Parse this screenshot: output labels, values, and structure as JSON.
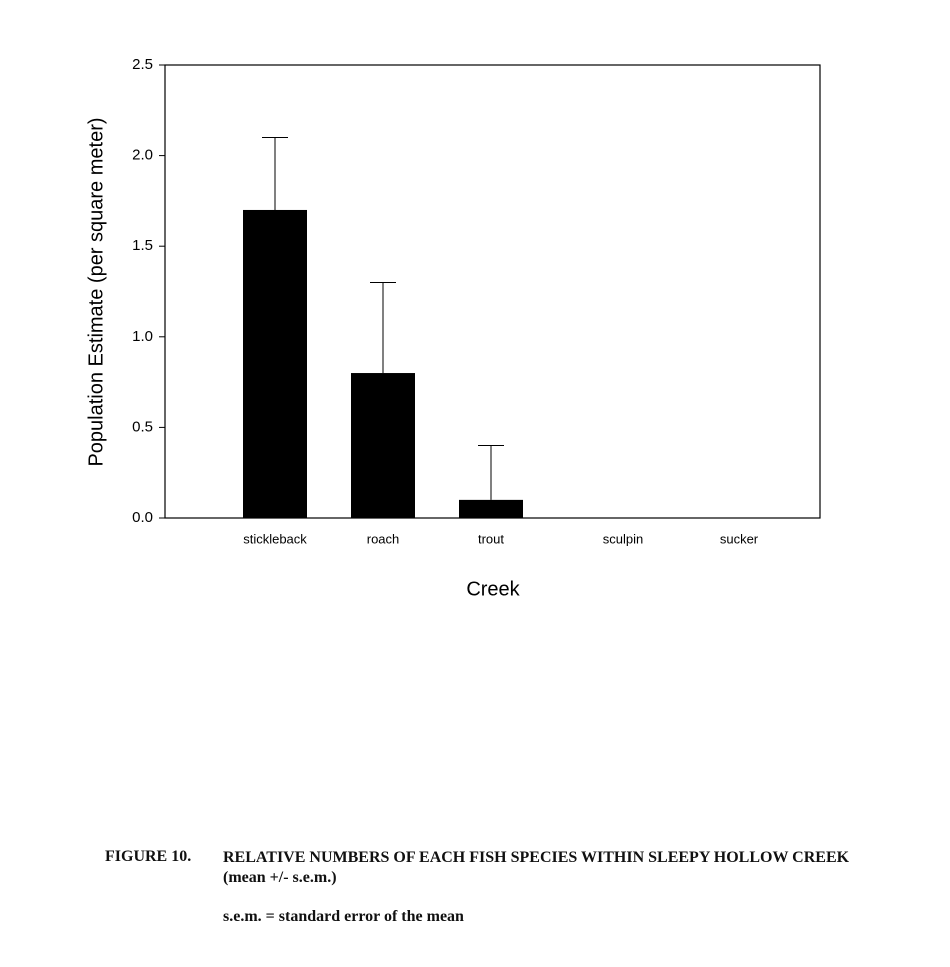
{
  "chart_data": {
    "type": "bar",
    "categories": [
      "stickleback",
      "roach",
      "trout",
      "sculpin",
      "sucker"
    ],
    "values": [
      1.7,
      0.8,
      0.1,
      0,
      0
    ],
    "errors": [
      0.4,
      0.5,
      0.3,
      0,
      0
    ],
    "color": "#000000",
    "x_label": "Creek",
    "y_label": "Population Estimate (per square meter)",
    "ylim": [
      0,
      2.5
    ],
    "yticks": [
      {
        "value": 0,
        "label": "0.0"
      },
      0.5,
      {
        "value": 1,
        "label": "1.0"
      },
      1.5,
      {
        "value": 2,
        "label": "2.0"
      },
      2.5
    ],
    "grid": false
  },
  "caption": {
    "label": "FIGURE 10.",
    "text": "RELATIVE NUMBERS OF EACH FISH SPECIES WITHIN SLEEPY HOLLOW CREEK (mean +/- s.e.m.)",
    "note": "s.e.m. = standard error of the mean"
  }
}
